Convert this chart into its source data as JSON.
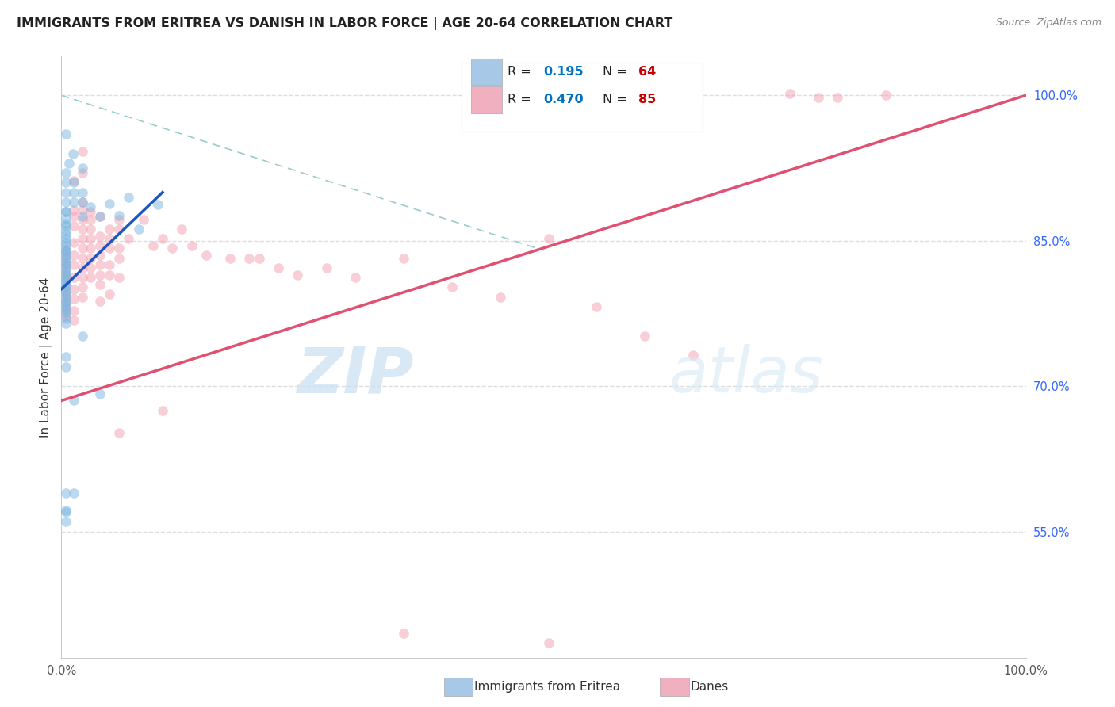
{
  "title": "IMMIGRANTS FROM ERITREA VS DANISH IN LABOR FORCE | AGE 20-64 CORRELATION CHART",
  "source": "Source: ZipAtlas.com",
  "ylabel": "In Labor Force | Age 20-64",
  "y_tick_labels": [
    "55.0%",
    "70.0%",
    "85.0%",
    "100.0%"
  ],
  "y_tick_values": [
    0.55,
    0.7,
    0.85,
    1.0
  ],
  "x_range": [
    0.0,
    1.0
  ],
  "y_range": [
    0.42,
    1.04
  ],
  "watermark_zip": "ZIP",
  "watermark_atlas": "atlas",
  "blue_scatter": [
    [
      0.005,
      0.96
    ],
    [
      0.012,
      0.94
    ],
    [
      0.008,
      0.93
    ],
    [
      0.005,
      0.92
    ],
    [
      0.005,
      0.91
    ],
    [
      0.005,
      0.9
    ],
    [
      0.005,
      0.89
    ],
    [
      0.005,
      0.88
    ],
    [
      0.005,
      0.88
    ],
    [
      0.005,
      0.873
    ],
    [
      0.005,
      0.868
    ],
    [
      0.005,
      0.865
    ],
    [
      0.005,
      0.86
    ],
    [
      0.005,
      0.856
    ],
    [
      0.005,
      0.852
    ],
    [
      0.005,
      0.848
    ],
    [
      0.005,
      0.845
    ],
    [
      0.005,
      0.841
    ],
    [
      0.005,
      0.838
    ],
    [
      0.005,
      0.835
    ],
    [
      0.005,
      0.832
    ],
    [
      0.005,
      0.828
    ],
    [
      0.005,
      0.825
    ],
    [
      0.005,
      0.822
    ],
    [
      0.005,
      0.818
    ],
    [
      0.005,
      0.815
    ],
    [
      0.005,
      0.812
    ],
    [
      0.005,
      0.808
    ],
    [
      0.005,
      0.805
    ],
    [
      0.005,
      0.802
    ],
    [
      0.005,
      0.798
    ],
    [
      0.005,
      0.795
    ],
    [
      0.005,
      0.792
    ],
    [
      0.005,
      0.788
    ],
    [
      0.005,
      0.785
    ],
    [
      0.005,
      0.782
    ],
    [
      0.005,
      0.778
    ],
    [
      0.005,
      0.775
    ],
    [
      0.005,
      0.77
    ],
    [
      0.005,
      0.765
    ],
    [
      0.013,
      0.91
    ],
    [
      0.013,
      0.9
    ],
    [
      0.013,
      0.89
    ],
    [
      0.022,
      0.9
    ],
    [
      0.022,
      0.89
    ],
    [
      0.022,
      0.875
    ],
    [
      0.03,
      0.885
    ],
    [
      0.04,
      0.875
    ],
    [
      0.05,
      0.888
    ],
    [
      0.06,
      0.876
    ],
    [
      0.07,
      0.895
    ],
    [
      0.08,
      0.862
    ],
    [
      0.1,
      0.887
    ],
    [
      0.013,
      0.685
    ],
    [
      0.022,
      0.752
    ],
    [
      0.013,
      0.59
    ],
    [
      0.005,
      0.572
    ],
    [
      0.005,
      0.72
    ],
    [
      0.005,
      0.73
    ],
    [
      0.022,
      0.925
    ],
    [
      0.005,
      0.57
    ],
    [
      0.005,
      0.56
    ],
    [
      0.005,
      0.59
    ],
    [
      0.04,
      0.692
    ]
  ],
  "pink_scatter": [
    [
      0.005,
      0.84
    ],
    [
      0.005,
      0.832
    ],
    [
      0.005,
      0.825
    ],
    [
      0.005,
      0.818
    ],
    [
      0.005,
      0.81
    ],
    [
      0.005,
      0.802
    ],
    [
      0.005,
      0.795
    ],
    [
      0.005,
      0.788
    ],
    [
      0.005,
      0.78
    ],
    [
      0.005,
      0.772
    ],
    [
      0.013,
      0.912
    ],
    [
      0.013,
      0.882
    ],
    [
      0.013,
      0.875
    ],
    [
      0.013,
      0.865
    ],
    [
      0.013,
      0.848
    ],
    [
      0.013,
      0.835
    ],
    [
      0.013,
      0.825
    ],
    [
      0.013,
      0.812
    ],
    [
      0.013,
      0.8
    ],
    [
      0.013,
      0.79
    ],
    [
      0.013,
      0.778
    ],
    [
      0.013,
      0.768
    ],
    [
      0.022,
      0.92
    ],
    [
      0.022,
      0.89
    ],
    [
      0.022,
      0.882
    ],
    [
      0.022,
      0.872
    ],
    [
      0.022,
      0.862
    ],
    [
      0.022,
      0.852
    ],
    [
      0.022,
      0.842
    ],
    [
      0.022,
      0.832
    ],
    [
      0.022,
      0.822
    ],
    [
      0.022,
      0.812
    ],
    [
      0.022,
      0.802
    ],
    [
      0.022,
      0.792
    ],
    [
      0.03,
      0.88
    ],
    [
      0.03,
      0.872
    ],
    [
      0.03,
      0.862
    ],
    [
      0.03,
      0.852
    ],
    [
      0.03,
      0.842
    ],
    [
      0.03,
      0.832
    ],
    [
      0.03,
      0.822
    ],
    [
      0.03,
      0.812
    ],
    [
      0.04,
      0.875
    ],
    [
      0.04,
      0.855
    ],
    [
      0.04,
      0.845
    ],
    [
      0.04,
      0.835
    ],
    [
      0.04,
      0.825
    ],
    [
      0.04,
      0.815
    ],
    [
      0.04,
      0.805
    ],
    [
      0.04,
      0.788
    ],
    [
      0.05,
      0.862
    ],
    [
      0.05,
      0.852
    ],
    [
      0.05,
      0.842
    ],
    [
      0.05,
      0.825
    ],
    [
      0.05,
      0.815
    ],
    [
      0.05,
      0.795
    ],
    [
      0.06,
      0.872
    ],
    [
      0.06,
      0.862
    ],
    [
      0.06,
      0.842
    ],
    [
      0.06,
      0.832
    ],
    [
      0.06,
      0.812
    ],
    [
      0.07,
      0.852
    ],
    [
      0.085,
      0.872
    ],
    [
      0.095,
      0.845
    ],
    [
      0.105,
      0.852
    ],
    [
      0.115,
      0.842
    ],
    [
      0.125,
      0.862
    ],
    [
      0.135,
      0.845
    ],
    [
      0.15,
      0.835
    ],
    [
      0.175,
      0.832
    ],
    [
      0.195,
      0.832
    ],
    [
      0.205,
      0.832
    ],
    [
      0.225,
      0.822
    ],
    [
      0.245,
      0.815
    ],
    [
      0.275,
      0.822
    ],
    [
      0.305,
      0.812
    ],
    [
      0.355,
      0.832
    ],
    [
      0.405,
      0.802
    ],
    [
      0.455,
      0.792
    ],
    [
      0.505,
      0.852
    ],
    [
      0.555,
      0.782
    ],
    [
      0.605,
      0.752
    ],
    [
      0.655,
      0.732
    ],
    [
      0.755,
      1.002
    ],
    [
      0.785,
      0.998
    ],
    [
      0.805,
      0.998
    ],
    [
      0.855,
      1.0
    ],
    [
      0.022,
      0.942
    ],
    [
      0.06,
      0.652
    ],
    [
      0.105,
      0.675
    ],
    [
      0.355,
      0.445
    ],
    [
      0.505,
      0.435
    ]
  ],
  "blue_line_x": [
    0.0,
    0.105
  ],
  "blue_line_y": [
    0.8,
    0.9
  ],
  "pink_line_x": [
    0.0,
    1.0
  ],
  "pink_line_y": [
    0.685,
    1.0
  ],
  "dashed_line_x": [
    0.0,
    0.5
  ],
  "dashed_line_y": [
    1.0,
    0.84
  ],
  "scatter_size": 75,
  "scatter_alpha": 0.5,
  "blue_color": "#7ab5e0",
  "pink_color": "#f4a0b0",
  "blue_line_color": "#1a56c4",
  "pink_line_color": "#e05070",
  "dashed_line_color": "#99cccc",
  "grid_color": "#dddddd",
  "title_fontsize": 11.5,
  "axis_label_fontsize": 11,
  "tick_fontsize": 10.5,
  "source_fontsize": 9,
  "legend_r_color": "#0070c0",
  "legend_n_color": "#cc0000",
  "blue_legend_color": "#a8c8e8",
  "pink_legend_color": "#f0b0c0"
}
